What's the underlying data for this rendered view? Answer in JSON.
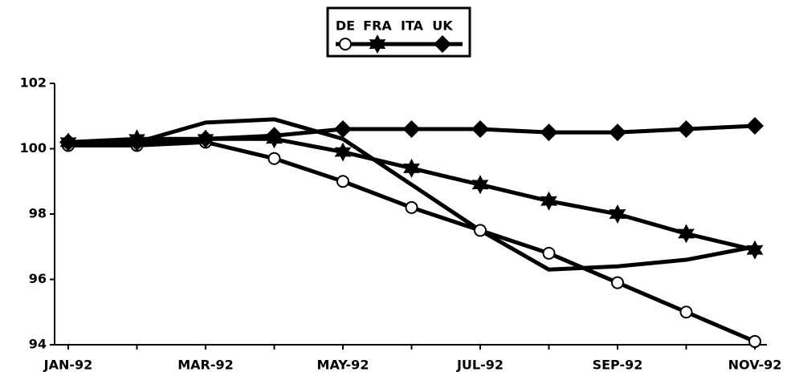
{
  "chart_data": {
    "type": "line",
    "categories": [
      "JAN-92",
      null,
      "MAR-92",
      null,
      "MAY-92",
      null,
      "JUL-92",
      null,
      "SEP-92",
      null,
      "NOV-92"
    ],
    "series": [
      {
        "name": "DE",
        "color": "#000000",
        "marker": "circle",
        "values": [
          100.1,
          100.1,
          100.2,
          99.7,
          99.0,
          98.2,
          97.5,
          96.8,
          95.9,
          95.0,
          94.1
        ]
      },
      {
        "name": "FRA",
        "color": "#000000",
        "marker": "star",
        "values": [
          100.2,
          100.3,
          100.3,
          100.3,
          99.9,
          99.4,
          98.9,
          98.4,
          98.0,
          97.4,
          96.9
        ]
      },
      {
        "name": "ITA",
        "color": "#000000",
        "marker": "none",
        "values": [
          100.1,
          100.2,
          100.8,
          100.9,
          100.3,
          98.9,
          97.5,
          96.3,
          96.4,
          96.6,
          97.0
        ]
      },
      {
        "name": "UK",
        "color": "#000000",
        "marker": "diamond",
        "values": [
          100.2,
          100.2,
          100.3,
          100.4,
          100.6,
          100.6,
          100.6,
          100.5,
          100.5,
          100.6,
          100.7
        ]
      }
    ],
    "ylim": [
      94,
      102
    ],
    "yticks": [
      94,
      96,
      98,
      100,
      102
    ],
    "grid": false,
    "legend": "top"
  }
}
